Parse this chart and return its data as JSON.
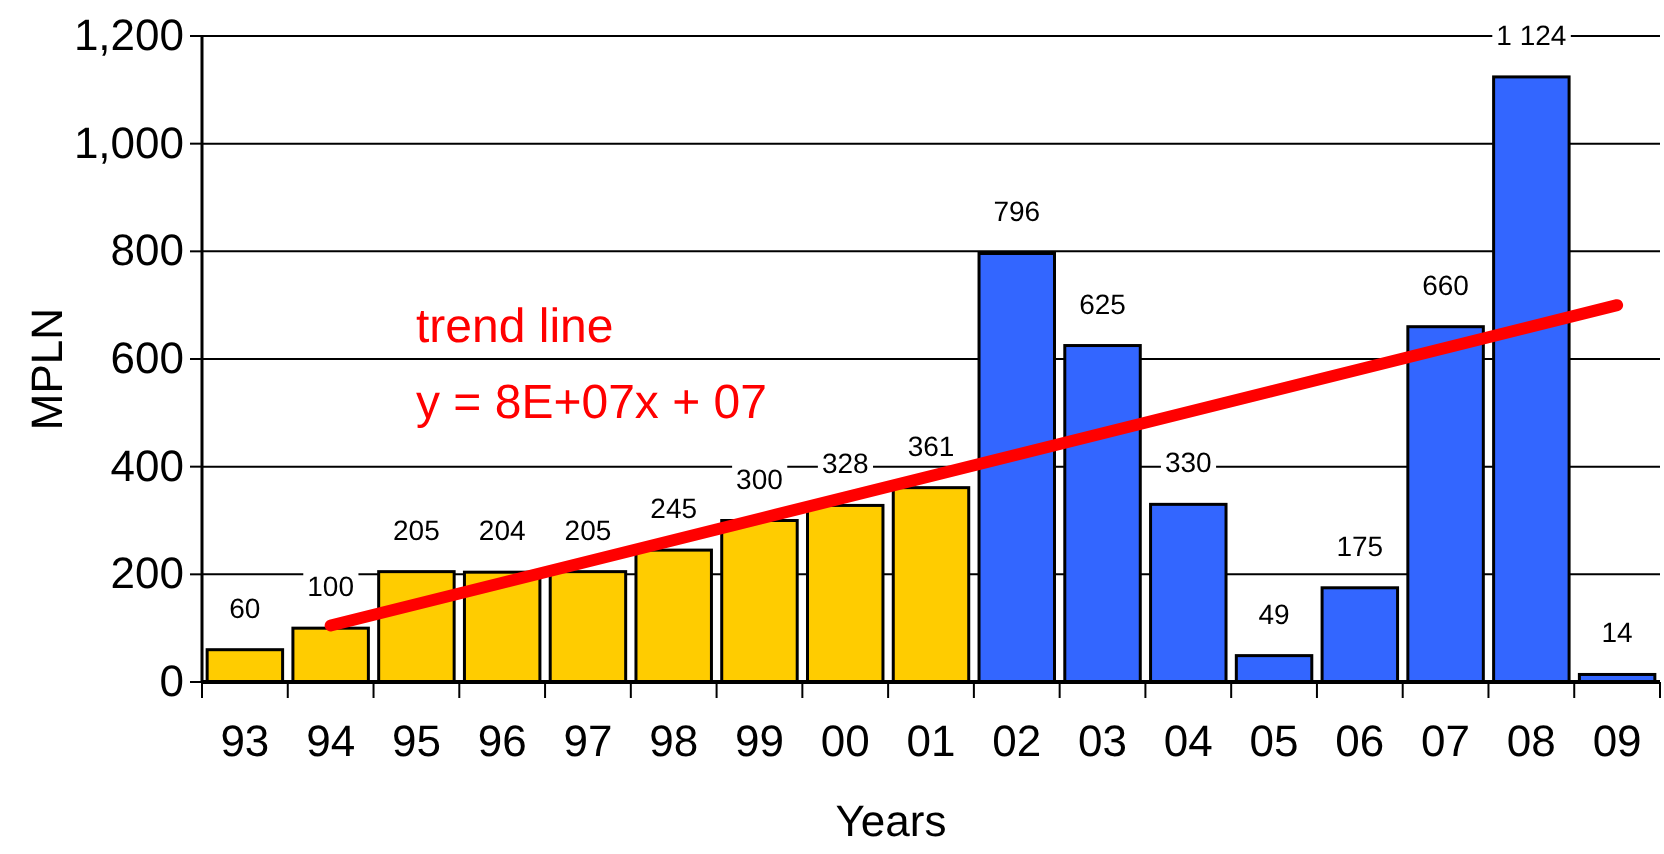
{
  "chart_data": {
    "type": "bar",
    "xlabel": "Years",
    "ylabel": "MPLN",
    "categories": [
      "93",
      "94",
      "95",
      "96",
      "97",
      "98",
      "99",
      "00",
      "01",
      "02",
      "03",
      "04",
      "05",
      "06",
      "07",
      "08",
      "09"
    ],
    "series": [
      {
        "values": [
          60,
          100,
          205,
          204,
          205,
          245,
          300,
          328,
          361,
          796,
          625,
          330,
          49,
          175,
          660,
          1124,
          14
        ],
        "colors": [
          "#ffcc00",
          "#ffcc00",
          "#ffcc00",
          "#ffcc00",
          "#ffcc00",
          "#ffcc00",
          "#ffcc00",
          "#ffcc00",
          "#ffcc00",
          "#3366ff",
          "#3366ff",
          "#3366ff",
          "#3366ff",
          "#3366ff",
          "#3366ff",
          "#3366ff",
          "#3366ff"
        ],
        "value_labels": [
          "60",
          "100",
          "205",
          "204",
          "205",
          "245",
          "300",
          "328",
          "361",
          "796",
          "625",
          "330",
          "49",
          "175",
          "660",
          "1 124",
          "14"
        ]
      },
      {
        "type": "line",
        "x": [
          "94",
          "09"
        ],
        "values": [
          105,
          700
        ],
        "color": "#ff0000"
      }
    ],
    "ylim": [
      0,
      1200
    ],
    "yticks": [
      0,
      200,
      400,
      600,
      800,
      {
        "value": 1000,
        "label": "1,000"
      },
      {
        "value": 1200,
        "label": "1,200"
      }
    ],
    "grid": "y",
    "annotations": [
      "trend line",
      "y = 8E+07x + 07"
    ]
  }
}
